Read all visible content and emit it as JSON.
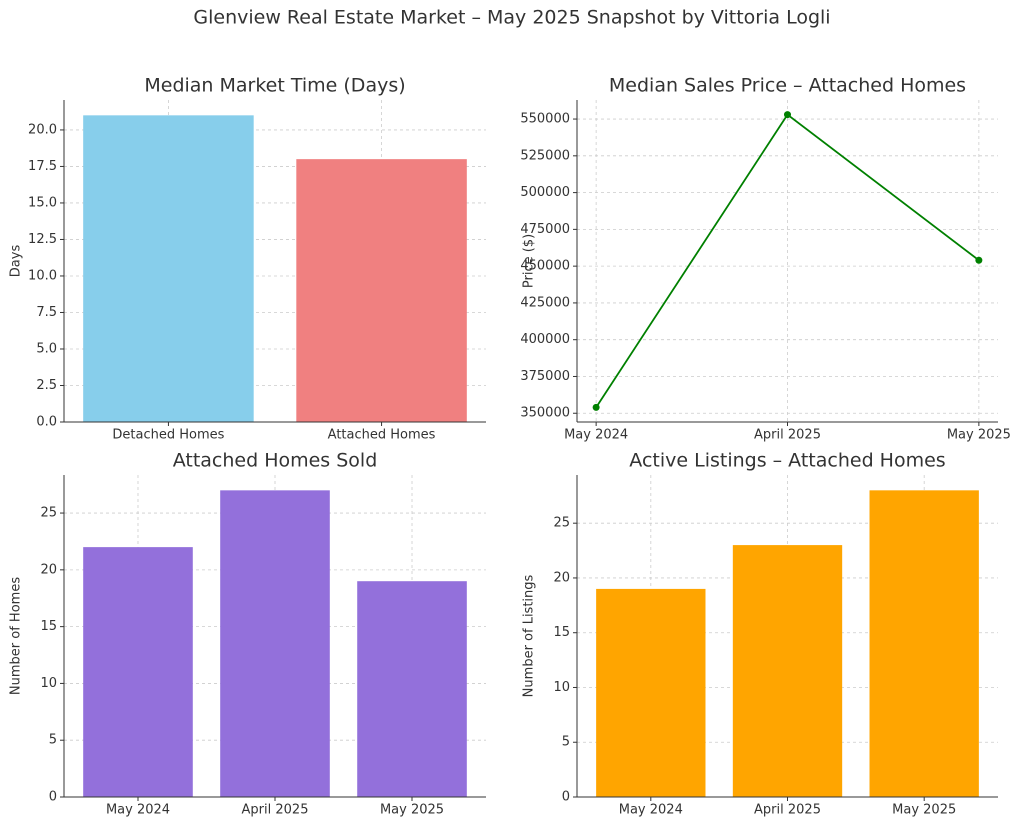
{
  "title": "Glenview Real Estate Market – May 2025 Snapshot by Vittoria Logli",
  "chart_data": [
    {
      "type": "bar",
      "title": "Median Market Time (Days)",
      "y_label": "Days",
      "categories": [
        "Detached Homes",
        "Attached Homes"
      ],
      "values": [
        21,
        18
      ],
      "colors": [
        "#87ceeb",
        "#f08080"
      ],
      "ylim": [
        0,
        22.05
      ],
      "yticks": [
        {
          "value": 0,
          "label": "0.0"
        },
        {
          "value": 2.5,
          "label": "2.5"
        },
        {
          "value": 5,
          "label": "5.0"
        },
        {
          "value": 7.5,
          "label": "7.5"
        },
        {
          "value": 10,
          "label": "10.0"
        },
        {
          "value": 12.5,
          "label": "12.5"
        },
        {
          "value": 15,
          "label": "15.0"
        },
        {
          "value": 17.5,
          "label": "17.5"
        },
        {
          "value": 20,
          "label": "20.0"
        }
      ],
      "grid": true
    },
    {
      "type": "line",
      "title": "Median Sales Price – Attached Homes",
      "y_label": "Price ($)",
      "categories": [
        "May 2024",
        "April 2025",
        "May 2025"
      ],
      "values": [
        354000,
        553000,
        454000
      ],
      "color": "#008000",
      "ylim": [
        344050,
        562950
      ],
      "yticks": [
        350000,
        375000,
        400000,
        425000,
        450000,
        475000,
        500000,
        525000,
        550000
      ],
      "grid": true
    },
    {
      "type": "bar",
      "title": "Attached Homes Sold",
      "y_label": "Number of Homes",
      "categories": [
        "May 2024",
        "April 2025",
        "May 2025"
      ],
      "values": [
        22,
        27,
        19
      ],
      "color": "#9370db",
      "ylim": [
        0,
        28.35
      ],
      "yticks": [
        0,
        5,
        10,
        15,
        20,
        25
      ],
      "grid": true
    },
    {
      "type": "bar",
      "title": "Active Listings – Attached Homes",
      "y_label": "Number of Listings",
      "categories": [
        "May 2024",
        "April 2025",
        "May 2025"
      ],
      "values": [
        19,
        23,
        28
      ],
      "color": "#ffa500",
      "ylim": [
        0,
        29.4
      ],
      "yticks": [
        0,
        5,
        10,
        15,
        20,
        25
      ],
      "grid": true
    }
  ]
}
